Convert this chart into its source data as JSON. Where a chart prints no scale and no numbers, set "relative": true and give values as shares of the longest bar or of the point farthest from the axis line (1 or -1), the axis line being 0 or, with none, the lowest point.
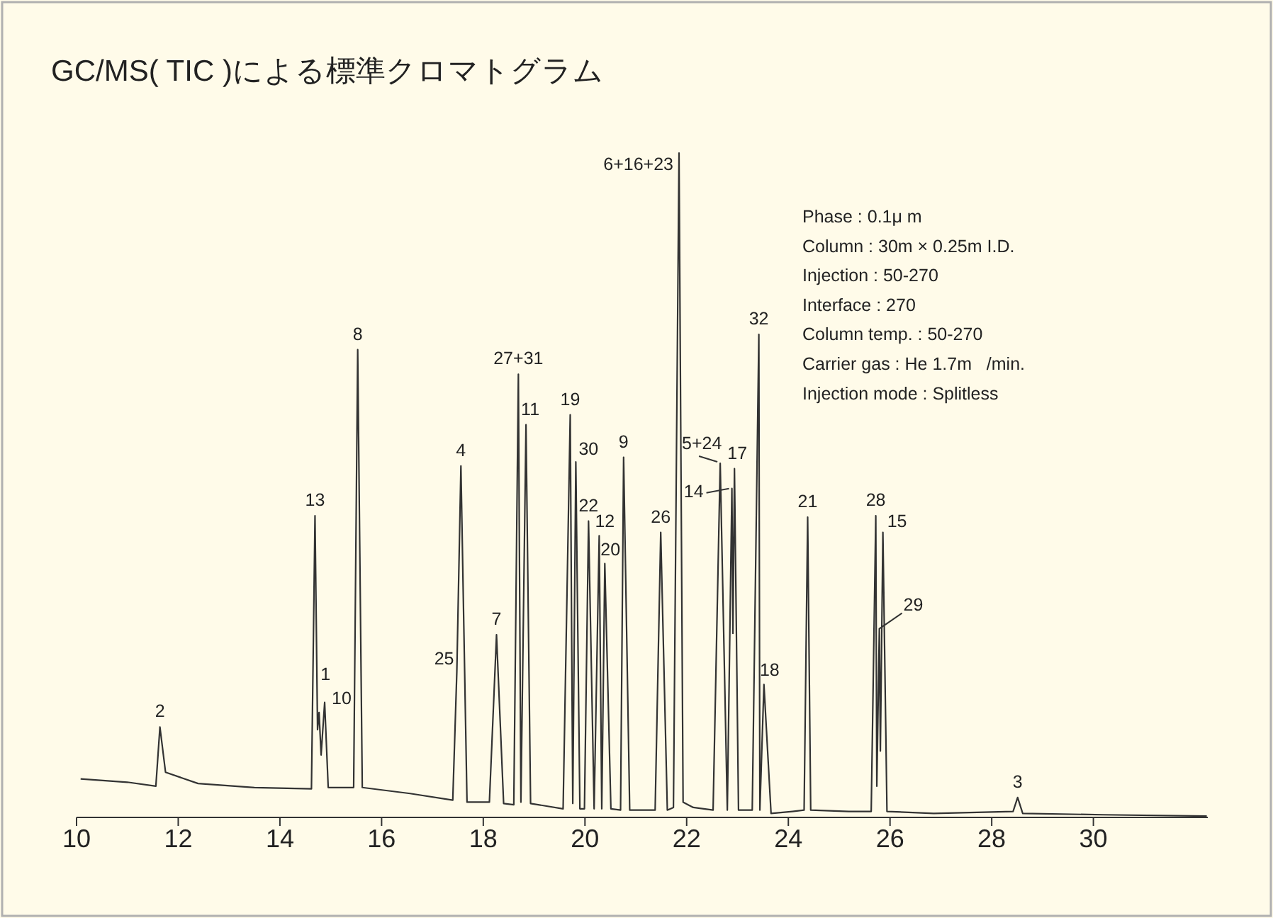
{
  "chart_data": {
    "type": "line",
    "title": "GC/MS( TIC )による標準クロマトグラム",
    "relative": true,
    "color": "#333333",
    "x": [
      10.08,
      11.0,
      11.56,
      11.64,
      11.75,
      12.39,
      13.5,
      14.62,
      14.69,
      14.74,
      14.77,
      14.81,
      14.88,
      14.95,
      15.45,
      15.53,
      15.62,
      16.56,
      17.4,
      17.48,
      17.56,
      17.68,
      18.12,
      18.26,
      18.4,
      18.6,
      18.69,
      18.74,
      18.84,
      18.93,
      19.57,
      19.71,
      19.76,
      19.82,
      19.9,
      19.99,
      20.07,
      20.18,
      20.28,
      20.33,
      20.39,
      20.51,
      20.7,
      20.76,
      20.88,
      21.38,
      21.49,
      21.62,
      21.74,
      21.85,
      21.93,
      22.13,
      22.52,
      22.66,
      22.8,
      22.89,
      22.91,
      22.94,
      23.02,
      23.29,
      23.42,
      23.44,
      23.52,
      23.66,
      24.08,
      24.31,
      24.38,
      24.44,
      25.19,
      25.63,
      25.72,
      25.74,
      25.79,
      25.81,
      25.86,
      25.94,
      26.86,
      28.42,
      28.51,
      28.61,
      30.19,
      32.23
    ],
    "values": [
      0.058,
      0.053,
      0.047,
      0.136,
      0.068,
      0.051,
      0.045,
      0.043,
      0.454,
      0.132,
      0.158,
      0.094,
      0.173,
      0.045,
      0.045,
      0.704,
      0.045,
      0.036,
      0.026,
      0.22,
      0.529,
      0.023,
      0.023,
      0.275,
      0.021,
      0.019,
      0.667,
      0.023,
      0.591,
      0.021,
      0.013,
      0.606,
      0.021,
      0.535,
      0.013,
      0.013,
      0.446,
      0.013,
      0.424,
      0.013,
      0.382,
      0.013,
      0.011,
      0.542,
      0.011,
      0.011,
      0.429,
      0.011,
      0.015,
      1,
      0.023,
      0.015,
      0.011,
      0.533,
      0.011,
      0.495,
      0.277,
      0.525,
      0.011,
      0.011,
      0.727,
      0.011,
      0.2,
      0.006,
      0.009,
      0.011,
      0.452,
      0.011,
      0.009,
      0.009,
      0.454,
      0.047,
      0.284,
      0.1,
      0.429,
      0.009,
      0.006,
      0.009,
      0.03,
      0.006,
      0.004,
      0.002
    ],
    "xlim": [
      10,
      32.25
    ],
    "xticks": [
      10,
      12,
      14,
      16,
      18,
      20,
      22,
      24,
      26,
      28,
      30
    ],
    "grid": false,
    "marker": "none",
    "line_style": "solid",
    "annotations": [
      {
        "text": "2",
        "x": 11.64,
        "y": 0.136
      },
      {
        "text": "13",
        "x": 14.69,
        "y": 0.454
      },
      {
        "text": "1",
        "x": 14.77,
        "y": 0.158
      },
      {
        "text": "10",
        "x": 14.88,
        "y": 0.173
      },
      {
        "text": "8",
        "x": 15.53,
        "y": 0.704
      },
      {
        "text": "25",
        "x": 17.48,
        "y": 0.22
      },
      {
        "text": "4",
        "x": 17.56,
        "y": 0.529
      },
      {
        "text": "7",
        "x": 18.26,
        "y": 0.275
      },
      {
        "text": "27+31",
        "x": 18.69,
        "y": 0.667
      },
      {
        "text": "11",
        "x": 18.84,
        "y": 0.591
      },
      {
        "text": "19",
        "x": 19.71,
        "y": 0.606
      },
      {
        "text": "30",
        "x": 19.82,
        "y": 0.535
      },
      {
        "text": "22",
        "x": 20.07,
        "y": 0.446
      },
      {
        "text": "12",
        "x": 20.28,
        "y": 0.424
      },
      {
        "text": "20",
        "x": 20.39,
        "y": 0.382
      },
      {
        "text": "9",
        "x": 20.76,
        "y": 0.542
      },
      {
        "text": "26",
        "x": 21.49,
        "y": 0.429
      },
      {
        "text": "6+16+23",
        "x": 21.85,
        "y": 1
      },
      {
        "text": "5+24",
        "x": 22.66,
        "y": 0.533
      },
      {
        "text": "14",
        "x": 22.89,
        "y": 0.495
      },
      {
        "text": "17",
        "x": 22.94,
        "y": 0.525
      },
      {
        "text": "32",
        "x": 23.42,
        "y": 0.727
      },
      {
        "text": "18",
        "x": 23.52,
        "y": 0.2
      },
      {
        "text": "21",
        "x": 24.38,
        "y": 0.452
      },
      {
        "text": "28",
        "x": 25.72,
        "y": 0.454
      },
      {
        "text": "15",
        "x": 25.86,
        "y": 0.429
      },
      {
        "text": "29",
        "x": 25.79,
        "y": 0.284
      },
      {
        "text": "3",
        "x": 28.51,
        "y": 0.03
      },
      "Phase : 0.1μ m",
      "Column : 30m × 0.25m I.D.",
      "Injection : 50-270",
      "Interface : 270",
      "Column temp. : 50-270",
      "Carrier gas : He 1.7m   /min.",
      "Injection mode : Splitless"
    ]
  }
}
